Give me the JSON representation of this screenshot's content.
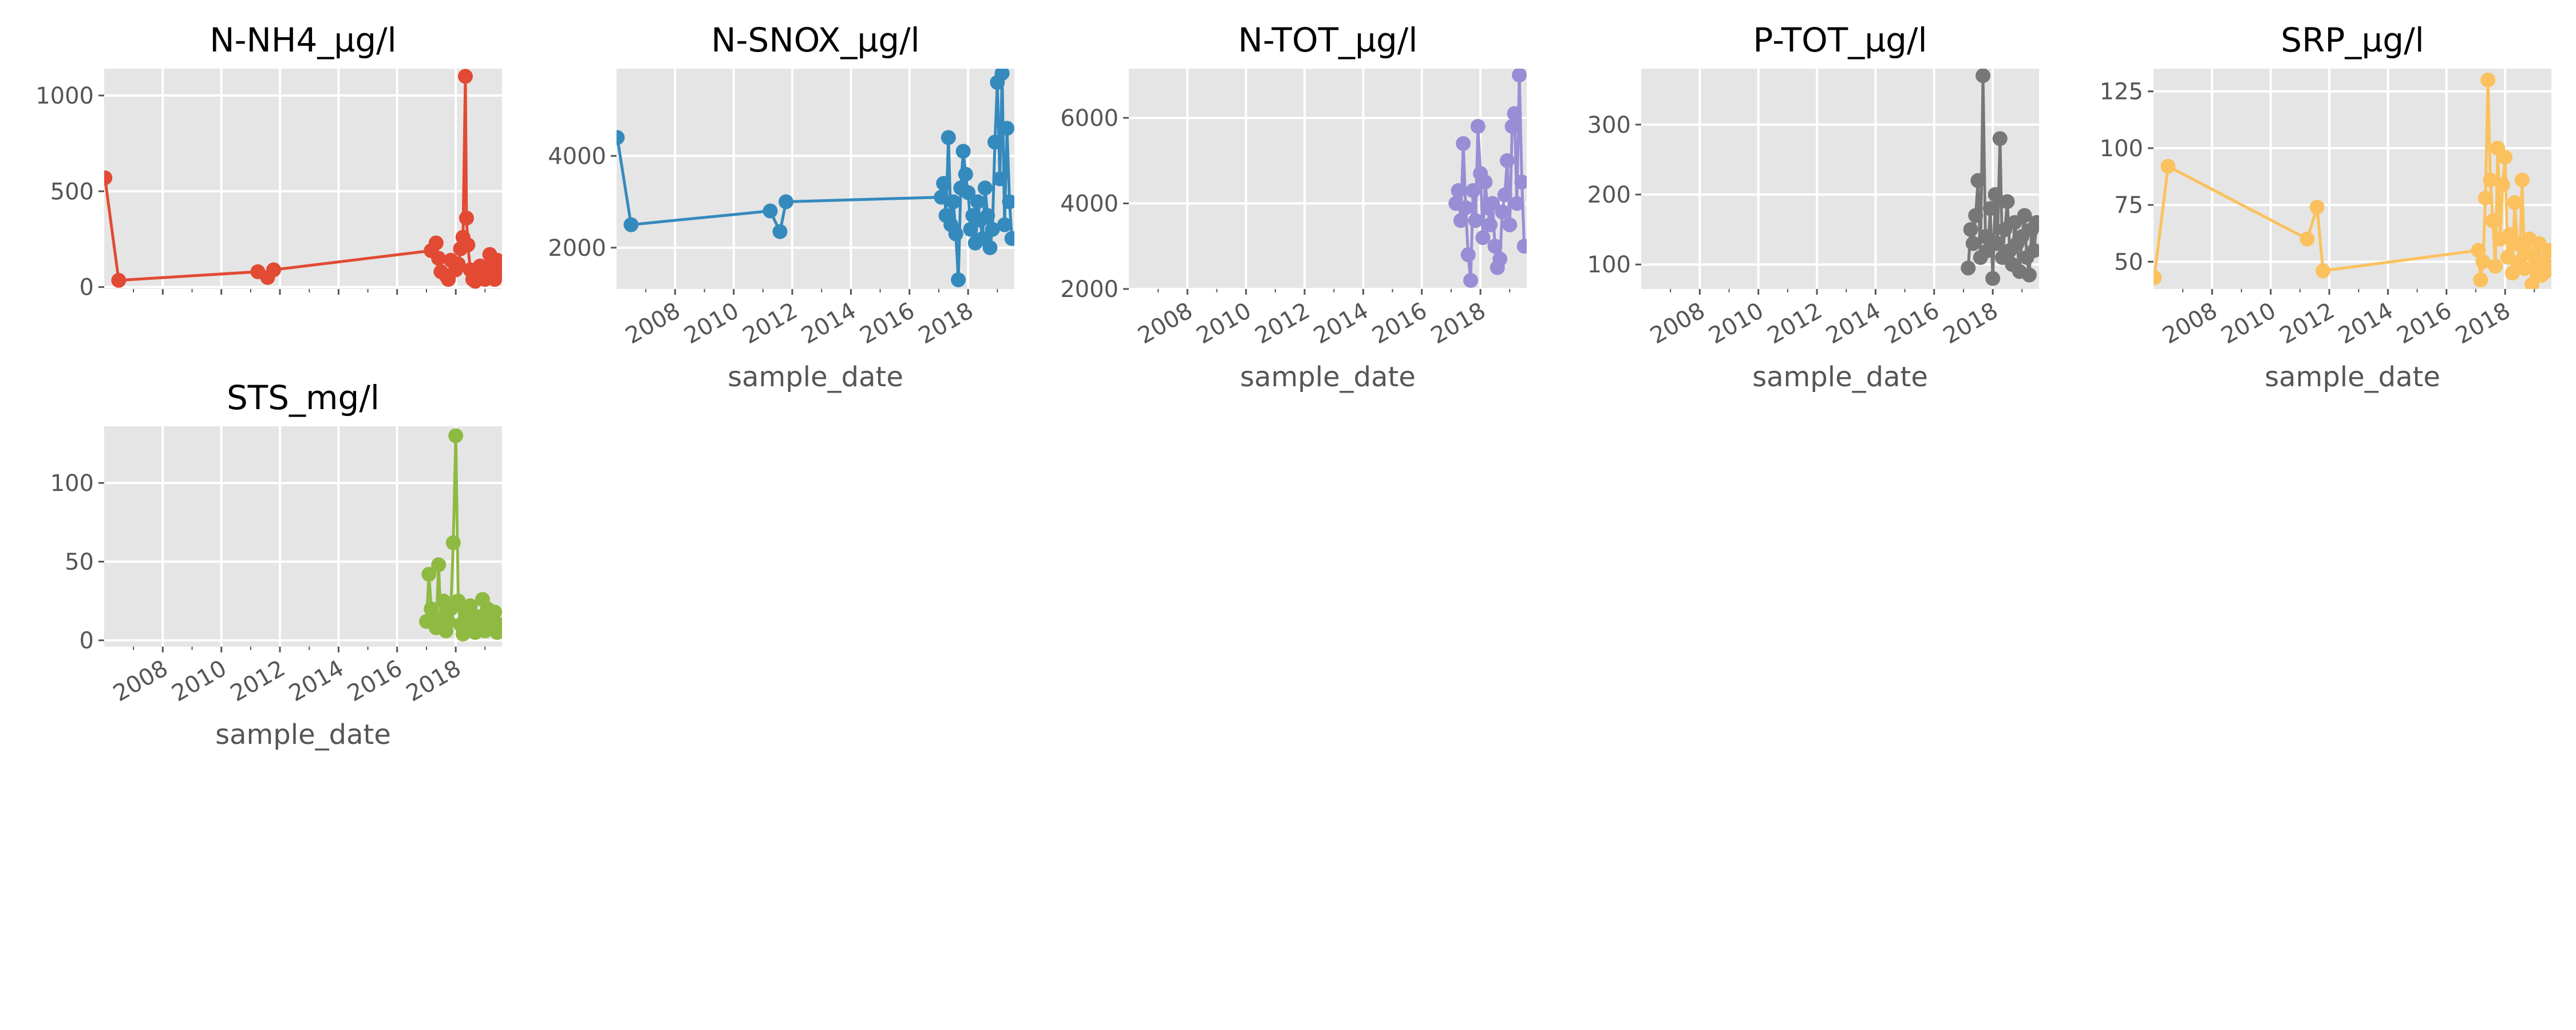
{
  "figure": {
    "background": "#ffffff",
    "panel_background": "#e5e5e5",
    "grid_color": "#ffffff",
    "tick_color": "#555555"
  },
  "chart_data": [
    {
      "type": "line",
      "title": "N-NH4_µg/l",
      "xlabel": "",
      "ylabel": "",
      "color": "#e24a33",
      "xlim": [
        "2006-01-01",
        "2019-08-01"
      ],
      "ylim": [
        -10,
        1140
      ],
      "yticks": [
        0,
        500,
        1000
      ],
      "xticks": [],
      "grid": true,
      "markers": true,
      "series": [
        {
          "x": [
            "2006-01-10",
            "2006-07-01",
            "2011-04-01",
            "2011-08-01",
            "2011-10-15",
            "2017-03-01",
            "2017-05-01",
            "2017-06-01",
            "2017-07-01",
            "2017-09-01",
            "2017-10-01",
            "2017-11-01",
            "2018-01-01",
            "2018-02-01",
            "2018-03-01",
            "2018-04-01",
            "2018-05-01",
            "2018-05-15",
            "2018-06-01",
            "2018-07-01",
            "2018-08-01",
            "2018-09-01",
            "2018-10-01",
            "2018-11-01",
            "2018-12-01",
            "2019-01-01",
            "2019-02-01",
            "2019-03-01",
            "2019-04-01",
            "2019-05-01",
            "2019-06-01",
            "2019-07-01"
          ],
          "y": [
            570,
            35,
            80,
            50,
            90,
            190,
            230,
            150,
            80,
            60,
            40,
            140,
            90,
            120,
            200,
            260,
            1100,
            360,
            220,
            90,
            40,
            30,
            80,
            110,
            60,
            40,
            100,
            170,
            60,
            40,
            140,
            90
          ]
        }
      ]
    },
    {
      "type": "line",
      "title": "N-SNOX_µg/l",
      "xlabel": "sample_date",
      "ylabel": "",
      "color": "#348abd",
      "xlim": [
        "2006-01-01",
        "2019-08-01"
      ],
      "ylim": [
        1100,
        5900
      ],
      "yticks": [
        2000,
        4000
      ],
      "xticks": [
        "2008",
        "2010",
        "2012",
        "2014",
        "2016",
        "2018"
      ],
      "grid": true,
      "markers": true,
      "series": [
        {
          "x": [
            "2006-01-10",
            "2006-07-01",
            "2011-04-01",
            "2011-08-01",
            "2011-10-15",
            "2017-02-01",
            "2017-03-01",
            "2017-04-01",
            "2017-05-01",
            "2017-06-01",
            "2017-07-01",
            "2017-08-01",
            "2017-09-01",
            "2017-10-01",
            "2017-11-01",
            "2017-12-01",
            "2018-01-01",
            "2018-02-01",
            "2018-03-01",
            "2018-04-01",
            "2018-05-01",
            "2018-06-01",
            "2018-07-01",
            "2018-08-01",
            "2018-09-01",
            "2018-10-01",
            "2018-11-01",
            "2018-12-01",
            "2019-01-01",
            "2019-02-01",
            "2019-03-01",
            "2019-04-01",
            "2019-05-01",
            "2019-06-01",
            "2019-07-01"
          ],
          "y": [
            4400,
            2500,
            2800,
            2350,
            3000,
            3100,
            3400,
            2700,
            4400,
            2500,
            3000,
            2300,
            1300,
            3300,
            4100,
            3600,
            3200,
            2400,
            2700,
            2100,
            3000,
            2600,
            2200,
            3300,
            2700,
            2000,
            2400,
            4300,
            5600,
            3500,
            5800,
            2500,
            4600,
            3000,
            2200
          ]
        }
      ]
    },
    {
      "type": "line",
      "title": "N-TOT_µg/l",
      "xlabel": "sample_date",
      "ylabel": "",
      "color": "#988ed5",
      "xlim": [
        "2006-01-01",
        "2019-08-01"
      ],
      "ylim": [
        2000,
        7150
      ],
      "yticks": [
        2000,
        4000,
        6000
      ],
      "xticks": [
        "2008",
        "2010",
        "2012",
        "2014",
        "2016",
        "2018"
      ],
      "grid": true,
      "markers": true,
      "series": [
        {
          "x": [
            "2017-03-01",
            "2017-04-01",
            "2017-05-01",
            "2017-06-01",
            "2017-07-01",
            "2017-08-01",
            "2017-09-01",
            "2017-10-01",
            "2017-11-01",
            "2017-12-01",
            "2018-01-01",
            "2018-02-01",
            "2018-03-01",
            "2018-04-01",
            "2018-05-01",
            "2018-06-01",
            "2018-07-01",
            "2018-08-01",
            "2018-09-01",
            "2018-10-01",
            "2018-11-01",
            "2018-12-01",
            "2019-01-01",
            "2019-02-01",
            "2019-03-01",
            "2019-04-01",
            "2019-05-01",
            "2019-06-01",
            "2019-07-01"
          ],
          "y": [
            4000,
            4300,
            3600,
            5400,
            3900,
            2800,
            2200,
            4300,
            3600,
            5800,
            4700,
            3200,
            4500,
            3900,
            3500,
            4000,
            3000,
            2500,
            2700,
            3800,
            4200,
            5000,
            3500,
            5800,
            6100,
            4000,
            7000,
            4500,
            3000
          ]
        }
      ]
    },
    {
      "type": "line",
      "title": "P-TOT_µg/l",
      "xlabel": "sample_date",
      "ylabel": "",
      "color": "#777777",
      "xlim": [
        "2006-01-01",
        "2019-08-01"
      ],
      "ylim": [
        65,
        380
      ],
      "yticks": [
        100,
        200,
        300
      ],
      "xticks": [
        "2008",
        "2010",
        "2012",
        "2014",
        "2016",
        "2018"
      ],
      "grid": true,
      "markers": true,
      "series": [
        {
          "x": [
            "2017-03-01",
            "2017-04-01",
            "2017-05-01",
            "2017-06-01",
            "2017-07-01",
            "2017-08-01",
            "2017-09-01",
            "2017-10-01",
            "2017-11-01",
            "2017-12-01",
            "2018-01-01",
            "2018-02-01",
            "2018-03-01",
            "2018-04-01",
            "2018-05-01",
            "2018-06-01",
            "2018-07-01",
            "2018-08-01",
            "2018-09-01",
            "2018-10-01",
            "2018-11-01",
            "2018-12-01",
            "2019-01-01",
            "2019-02-01",
            "2019-03-01",
            "2019-04-01",
            "2019-05-01",
            "2019-06-01",
            "2019-07-01"
          ],
          "y": [
            95,
            150,
            130,
            170,
            220,
            110,
            370,
            140,
            120,
            180,
            80,
            200,
            130,
            280,
            110,
            150,
            190,
            120,
            100,
            160,
            130,
            90,
            140,
            170,
            110,
            85,
            150,
            120,
            160
          ]
        }
      ]
    },
    {
      "type": "line",
      "title": "SRP_µg/l",
      "xlabel": "sample_date",
      "ylabel": "",
      "color": "#fbc15e",
      "xlim": [
        "2006-01-01",
        "2019-08-01"
      ],
      "ylim": [
        38,
        135
      ],
      "yticks": [
        50,
        75,
        100,
        125
      ],
      "xticks": [
        "2008",
        "2010",
        "2012",
        "2014",
        "2016",
        "2018"
      ],
      "grid": true,
      "markers": true,
      "series": [
        {
          "x": [
            "2006-01-10",
            "2006-07-01",
            "2011-04-01",
            "2011-08-01",
            "2011-10-15",
            "2017-02-01",
            "2017-03-01",
            "2017-04-01",
            "2017-05-01",
            "2017-06-01",
            "2017-07-01",
            "2017-08-01",
            "2017-09-01",
            "2017-10-01",
            "2017-11-01",
            "2017-12-01",
            "2018-01-01",
            "2018-02-01",
            "2018-03-01",
            "2018-04-01",
            "2018-05-01",
            "2018-06-01",
            "2018-07-01",
            "2018-08-01",
            "2018-09-01",
            "2018-10-01",
            "2018-11-01",
            "2018-12-01",
            "2019-01-01",
            "2019-02-01",
            "2019-03-01",
            "2019-04-01",
            "2019-05-01",
            "2019-06-01",
            "2019-07-01"
          ],
          "y": [
            43,
            92,
            60,
            74,
            46,
            55,
            42,
            50,
            78,
            130,
            86,
            68,
            48,
            100,
            60,
            84,
            96,
            52,
            62,
            45,
            76,
            58,
            50,
            86,
            47,
            54,
            60,
            40,
            52,
            47,
            58,
            44,
            50,
            46,
            55
          ]
        }
      ]
    },
    {
      "type": "line",
      "title": "STS_mg/l",
      "xlabel": "sample_date",
      "ylabel": "",
      "color": "#8eba42",
      "xlim": [
        "2006-01-01",
        "2019-08-01"
      ],
      "ylim": [
        -4,
        136
      ],
      "yticks": [
        0,
        50,
        100
      ],
      "xticks": [
        "2008",
        "2010",
        "2012",
        "2014",
        "2016",
        "2018"
      ],
      "grid": true,
      "markers": true,
      "series": [
        {
          "x": [
            "2017-01-01",
            "2017-02-01",
            "2017-03-01",
            "2017-04-01",
            "2017-05-01",
            "2017-06-01",
            "2017-07-01",
            "2017-08-01",
            "2017-09-01",
            "2017-10-01",
            "2017-11-01",
            "2017-12-01",
            "2018-01-01",
            "2018-02-01",
            "2018-03-01",
            "2018-04-01",
            "2018-05-01",
            "2018-06-01",
            "2018-07-01",
            "2018-08-01",
            "2018-09-01",
            "2018-10-01",
            "2018-11-01",
            "2018-12-01",
            "2019-01-01",
            "2019-02-01",
            "2019-03-01",
            "2019-04-01",
            "2019-05-01",
            "2019-06-01",
            "2019-07-01"
          ],
          "y": [
            12,
            42,
            20,
            15,
            8,
            48,
            10,
            25,
            6,
            12,
            20,
            62,
            130,
            25,
            10,
            4,
            18,
            12,
            22,
            8,
            5,
            15,
            10,
            26,
            6,
            20,
            12,
            8,
            18,
            5,
            10
          ]
        }
      ]
    }
  ]
}
